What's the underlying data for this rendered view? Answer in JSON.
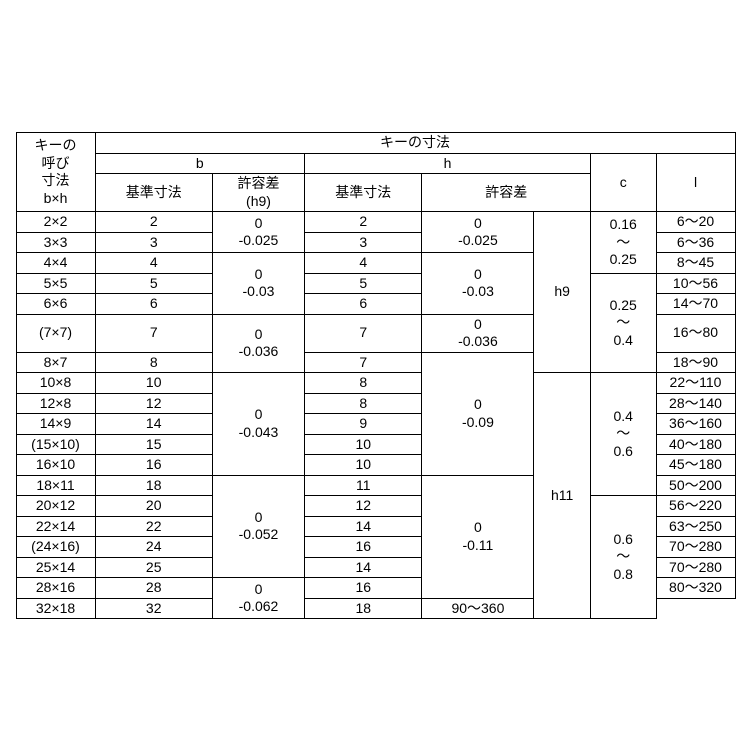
{
  "headers": {
    "nominal": "キーの\n呼び\n寸法\nb×h",
    "key_dim": "キーの寸法",
    "b": "b",
    "h": "h",
    "c": "c",
    "l": "l",
    "base_dim": "基準寸法",
    "tol_h9": "許容差\n(h9)",
    "tol": "許容差"
  },
  "rows": [
    {
      "bh": "2×2",
      "b": "2",
      "h": "2",
      "l": "6～20"
    },
    {
      "bh": "3×3",
      "b": "3",
      "h": "3",
      "l": "6～36"
    },
    {
      "bh": "4×4",
      "b": "4",
      "h": "4",
      "l": "8～45"
    },
    {
      "bh": "5×5",
      "b": "5",
      "h": "5",
      "l": "10～56"
    },
    {
      "bh": "6×6",
      "b": "6",
      "h": "6",
      "l": "14～70"
    },
    {
      "bh": "(7×7)",
      "b": "7",
      "h": "7",
      "l": "16～80"
    },
    {
      "bh": "8×7",
      "b": "8",
      "h": "7",
      "l": "18～90"
    },
    {
      "bh": "10×8",
      "b": "10",
      "h": "8",
      "l": "22～110"
    },
    {
      "bh": "12×8",
      "b": "12",
      "h": "8",
      "l": "28～140"
    },
    {
      "bh": "14×9",
      "b": "14",
      "h": "9",
      "l": "36～160"
    },
    {
      "bh": "(15×10)",
      "b": "15",
      "h": "10",
      "l": "40～180"
    },
    {
      "bh": "16×10",
      "b": "16",
      "h": "10",
      "l": "45～180"
    },
    {
      "bh": "18×11",
      "b": "18",
      "h": "11",
      "l": "50～200"
    },
    {
      "bh": "20×12",
      "b": "20",
      "h": "12",
      "l": "56～220"
    },
    {
      "bh": "22×14",
      "b": "22",
      "h": "14",
      "l": "63～250"
    },
    {
      "bh": "(24×16)",
      "b": "24",
      "h": "16",
      "l": "70～280"
    },
    {
      "bh": "25×14",
      "b": "25",
      "h": "14",
      "l": "70～280"
    },
    {
      "bh": "28×16",
      "b": "28",
      "h": "16",
      "l": "80～320"
    },
    {
      "bh": "32×18",
      "b": "32",
      "h": "18",
      "l": "90～360"
    }
  ],
  "b_tol": {
    "g1": "0\n-0.025",
    "g2": "0\n-0.03",
    "g3": "0\n-0.036",
    "g4": "0\n-0.043",
    "g5": "0\n-0.052",
    "g6": "0\n-0.062"
  },
  "h_tol_val": {
    "g1": "0\n-0.025",
    "g2": "0\n-0.03",
    "g3": "0\n-0.036",
    "g4": "0\n-0.09",
    "g5": "0\n-0.11"
  },
  "h_class": {
    "h9": "h9",
    "h11": "h11"
  },
  "c_groups": {
    "g1": "0.16\n～\n0.25",
    "g2": "0.25\n～\n0.4",
    "g3": "0.4\n～\n0.6",
    "g4": "0.6\n～\n0.8"
  }
}
